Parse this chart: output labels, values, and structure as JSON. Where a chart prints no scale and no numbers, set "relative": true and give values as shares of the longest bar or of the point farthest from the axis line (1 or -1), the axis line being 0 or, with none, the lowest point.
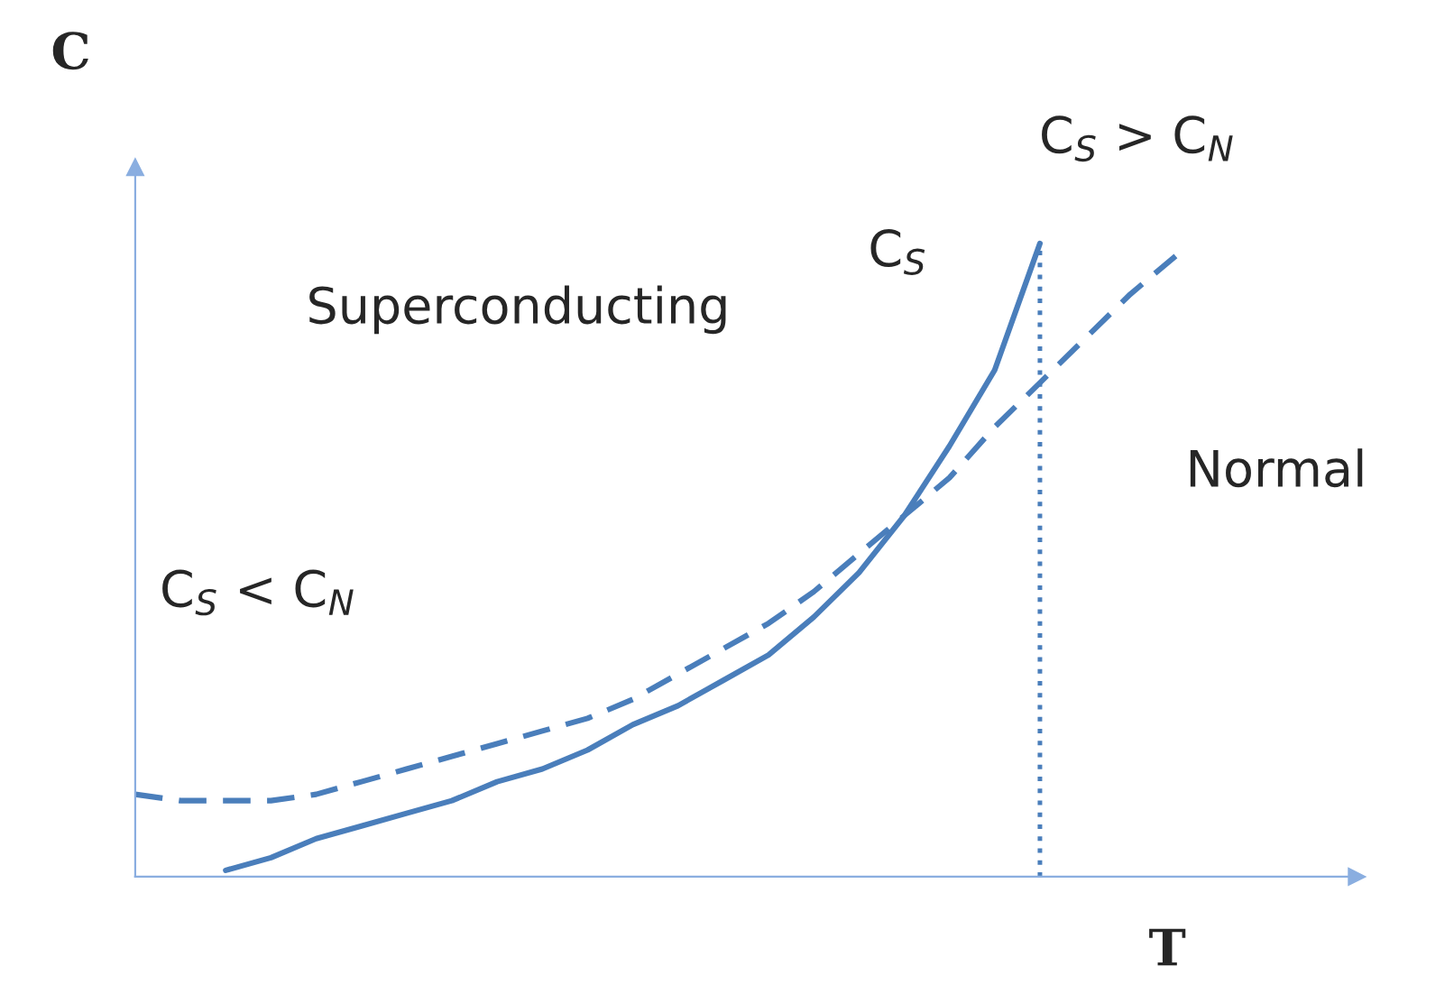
{
  "chart_data": {
    "type": "line",
    "relative": true,
    "xlabel": "T",
    "ylabel": "C",
    "categories": [
      null,
      null,
      null,
      null,
      null,
      null,
      null,
      null,
      null,
      null,
      null,
      null,
      null,
      null,
      null,
      null,
      null,
      null,
      null,
      null,
      null,
      null,
      null,
      null,
      null,
      null,
      null,
      null
    ],
    "series": [
      {
        "color": "#4a7ebb",
        "line_style": "solid",
        "values": [
          null,
          null,
          0.01,
          0.03,
          0.06,
          0.08,
          0.1,
          0.12,
          0.15,
          0.17,
          0.2,
          0.24,
          0.27,
          0.31,
          0.35,
          0.41,
          0.48,
          0.57,
          0.68,
          0.8,
          1.0,
          null,
          null,
          null,
          null,
          null,
          null,
          null
        ]
      },
      {
        "color": "#4a7ebb",
        "line_style": "dashed",
        "values": [
          0.13,
          0.12,
          0.12,
          0.12,
          0.13,
          0.15,
          0.17,
          0.19,
          0.21,
          0.23,
          0.25,
          0.28,
          0.32,
          0.36,
          0.4,
          0.45,
          0.51,
          0.57,
          0.63,
          0.71,
          0.78,
          0.85,
          0.92,
          0.98,
          null,
          null,
          null,
          null
        ]
      }
    ],
    "annotations": [
      "Superconducting",
      "Normal",
      "C$_{S}$ < C$_{N}$",
      "C$_{S}$ > C$_{N}$",
      "C$_{S}$"
    ],
    "legend": false
  }
}
